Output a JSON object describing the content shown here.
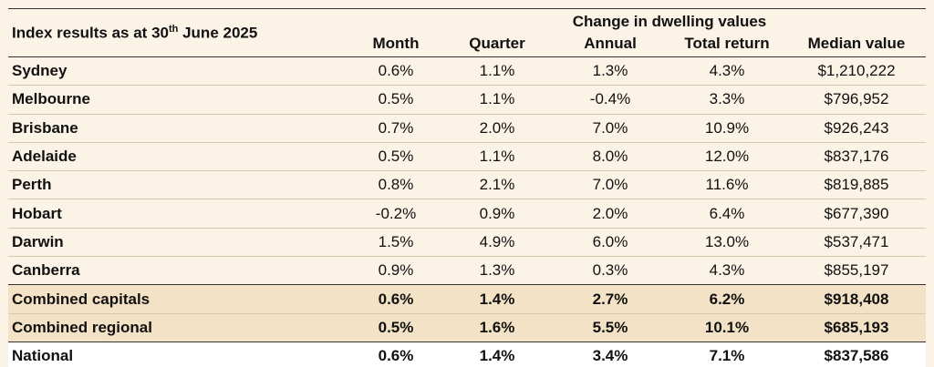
{
  "table": {
    "title_prefix": "Index results as at 30",
    "title_sup": "th",
    "title_suffix": " June 2025",
    "group_header": "Change in dwelling values",
    "columns": [
      "Month",
      "Quarter",
      "Annual",
      "Total return",
      "Median value"
    ],
    "rows": [
      {
        "name": "Sydney",
        "cells": [
          "0.6%",
          "1.1%",
          "1.3%",
          "4.3%",
          "$1,210,222"
        ]
      },
      {
        "name": "Melbourne",
        "cells": [
          "0.5%",
          "1.1%",
          "-0.4%",
          "3.3%",
          "$796,952"
        ]
      },
      {
        "name": "Brisbane",
        "cells": [
          "0.7%",
          "2.0%",
          "7.0%",
          "10.9%",
          "$926,243"
        ]
      },
      {
        "name": "Adelaide",
        "cells": [
          "0.5%",
          "1.1%",
          "8.0%",
          "12.0%",
          "$837,176"
        ]
      },
      {
        "name": "Perth",
        "cells": [
          "0.8%",
          "2.1%",
          "7.0%",
          "11.6%",
          "$819,885"
        ]
      },
      {
        "name": "Hobart",
        "cells": [
          "-0.2%",
          "0.9%",
          "2.0%",
          "6.4%",
          "$677,390"
        ]
      },
      {
        "name": "Darwin",
        "cells": [
          "1.5%",
          "4.9%",
          "6.0%",
          "13.0%",
          "$537,471"
        ]
      },
      {
        "name": "Canberra",
        "cells": [
          "0.9%",
          "1.3%",
          "0.3%",
          "4.3%",
          "$855,197"
        ]
      }
    ],
    "summary_rows": [
      {
        "name": "Combined capitals",
        "cells": [
          "0.6%",
          "1.4%",
          "2.7%",
          "6.2%",
          "$918,408"
        ]
      },
      {
        "name": "Combined regional",
        "cells": [
          "0.5%",
          "1.6%",
          "5.5%",
          "10.1%",
          "$685,193"
        ]
      }
    ],
    "national_row": {
      "name": "National",
      "cells": [
        "0.6%",
        "1.4%",
        "3.4%",
        "7.1%",
        "$837,586"
      ]
    },
    "colors": {
      "page_background": "#fbf3e6",
      "summary_background": "#f3e2c5",
      "national_background": "#ffffff"
    }
  }
}
